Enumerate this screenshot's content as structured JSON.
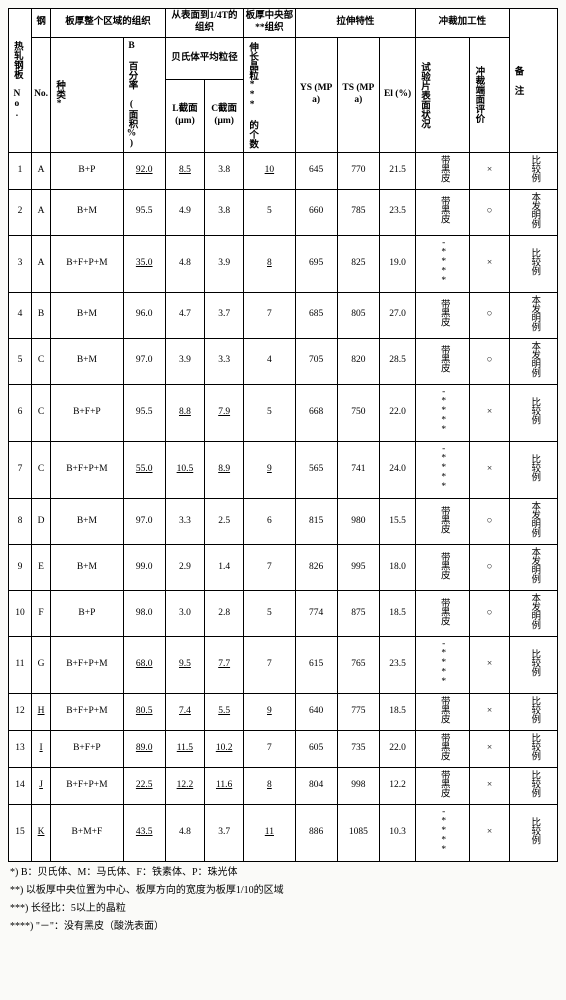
{
  "header": {
    "col_no": "热轧钢板 No.",
    "col_steel": "钢",
    "col_steel_no": "No.",
    "col_region_org": "板厚整个区域的组织",
    "col_species": "种类*",
    "col_b_pct": "B 百分率 (面积%)",
    "col_surf_qtr": "从表面到1/4T的组织",
    "col_bainite_diam": "贝氏体平均粒径",
    "col_l_section": "L截面 (μm)",
    "col_c_section": "C截面 (μm)",
    "col_center_org": "板厚中央部**组织",
    "col_elong_count": "伸长晶粒*** 的个数",
    "col_tensile": "拉伸特性",
    "col_ys": "YS (MPa)",
    "col_ts": "TS (MPa)",
    "col_el": "El (%)",
    "col_punch": "冲裁加工性",
    "col_spec_surf": "试验片表面状况",
    "col_punch_eval": "冲裁端面评价",
    "col_remark": "备 注"
  },
  "marks": {
    "ok": "○",
    "ng": "×"
  },
  "surfaces": {
    "black": "带黑皮",
    "star": "-****"
  },
  "remarks": {
    "comp": "比较例",
    "inv": "本发明例"
  },
  "rows": [
    {
      "no": "1",
      "mat": "A",
      "sp": "B+P",
      "b": "92.0",
      "bU": 1,
      "l": "8.5",
      "lU": 1,
      "c": "3.8",
      "elo": "10",
      "eloU": 1,
      "ys": "645",
      "ts": "770",
      "el": "21.5",
      "surf": "black",
      "eval": "ng",
      "rem": "comp"
    },
    {
      "no": "2",
      "mat": "A",
      "sp": "B+M",
      "b": "95.5",
      "l": "4.9",
      "c": "3.8",
      "elo": "5",
      "ys": "660",
      "ts": "785",
      "el": "23.5",
      "surf": "black",
      "eval": "ok",
      "rem": "inv"
    },
    {
      "no": "3",
      "mat": "A",
      "sp": "B+F+P+M",
      "b": "35.0",
      "bU": 1,
      "l": "4.8",
      "c": "3.9",
      "elo": "8",
      "eloU": 1,
      "ys": "695",
      "ts": "825",
      "el": "19.0",
      "surf": "star",
      "eval": "ng",
      "rem": "comp"
    },
    {
      "no": "4",
      "mat": "B",
      "sp": "B+M",
      "b": "96.0",
      "l": "4.7",
      "c": "3.7",
      "elo": "7",
      "ys": "685",
      "ts": "805",
      "el": "27.0",
      "surf": "black",
      "eval": "ok",
      "rem": "inv"
    },
    {
      "no": "5",
      "mat": "C",
      "sp": "B+M",
      "b": "97.0",
      "l": "3.9",
      "c": "3.3",
      "elo": "4",
      "ys": "705",
      "ts": "820",
      "el": "28.5",
      "surf": "black",
      "eval": "ok",
      "rem": "inv"
    },
    {
      "no": "6",
      "mat": "C",
      "sp": "B+F+P",
      "b": "95.5",
      "l": "8.8",
      "lU": 1,
      "c": "7.9",
      "cU": 1,
      "elo": "5",
      "ys": "668",
      "ts": "750",
      "el": "22.0",
      "surf": "star",
      "eval": "ng",
      "rem": "comp"
    },
    {
      "no": "7",
      "mat": "C",
      "sp": "B+F+P+M",
      "b": "55.0",
      "bU": 1,
      "l": "10.5",
      "lU": 1,
      "c": "8.9",
      "cU": 1,
      "elo": "9",
      "eloU": 1,
      "ys": "565",
      "ts": "741",
      "el": "24.0",
      "surf": "star",
      "eval": "ng",
      "rem": "comp"
    },
    {
      "no": "8",
      "mat": "D",
      "sp": "B+M",
      "b": "97.0",
      "l": "3.3",
      "c": "2.5",
      "elo": "6",
      "ys": "815",
      "ts": "980",
      "el": "15.5",
      "surf": "black",
      "eval": "ok",
      "rem": "inv"
    },
    {
      "no": "9",
      "mat": "E",
      "sp": "B+M",
      "b": "99.0",
      "l": "2.9",
      "c": "1.4",
      "elo": "7",
      "ys": "826",
      "ts": "995",
      "el": "18.0",
      "surf": "black",
      "eval": "ok",
      "rem": "inv"
    },
    {
      "no": "10",
      "mat": "F",
      "sp": "B+P",
      "b": "98.0",
      "l": "3.0",
      "c": "2.8",
      "elo": "5",
      "ys": "774",
      "ts": "875",
      "el": "18.5",
      "surf": "black",
      "eval": "ok",
      "rem": "inv"
    },
    {
      "no": "11",
      "mat": "G",
      "sp": "B+F+P+M",
      "b": "68.0",
      "bU": 1,
      "l": "9.5",
      "lU": 1,
      "c": "7.7",
      "cU": 1,
      "elo": "7",
      "ys": "615",
      "ts": "765",
      "el": "23.5",
      "surf": "star",
      "eval": "ng",
      "rem": "comp"
    },
    {
      "no": "12",
      "mat": "H",
      "mU": 1,
      "sp": "B+F+P+M",
      "b": "80.5",
      "bU": 1,
      "l": "7.4",
      "lU": 1,
      "c": "5.5",
      "cU": 1,
      "elo": "9",
      "eloU": 1,
      "ys": "640",
      "ts": "775",
      "el": "18.5",
      "surf": "black",
      "eval": "ng",
      "rem": "comp"
    },
    {
      "no": "13",
      "mat": "I",
      "mU": 1,
      "sp": "B+F+P",
      "b": "89.0",
      "bU": 1,
      "l": "11.5",
      "lU": 1,
      "c": "10.2",
      "cU": 1,
      "elo": "7",
      "ys": "605",
      "ts": "735",
      "el": "22.0",
      "surf": "black",
      "eval": "ng",
      "rem": "comp"
    },
    {
      "no": "14",
      "mat": "J",
      "mU": 1,
      "sp": "B+F+P+M",
      "b": "22.5",
      "bU": 1,
      "l": "12.2",
      "lU": 1,
      "c": "11.6",
      "cU": 1,
      "elo": "8",
      "eloU": 1,
      "ys": "804",
      "ts": "998",
      "el": "12.2",
      "surf": "black",
      "eval": "ng",
      "rem": "comp"
    },
    {
      "no": "15",
      "mat": "K",
      "mU": 1,
      "sp": "B+M+F",
      "b": "43.5",
      "bU": 1,
      "l": "4.8",
      "c": "3.7",
      "elo": "11",
      "eloU": 1,
      "ys": "886",
      "ts": "1085",
      "el": "10.3",
      "surf": "star",
      "eval": "ng",
      "rem": "comp"
    }
  ],
  "footnotes": [
    "*) B：贝氏体、M：马氏体、F：铁素体、P：珠光体",
    "**) 以板厚中央位置为中心、板厚方向的宽度为板厚1/10的区域",
    "***) 长径比：5以上的晶粒",
    "****) \"－\"：没有黑皮（酸洗表面）"
  ]
}
